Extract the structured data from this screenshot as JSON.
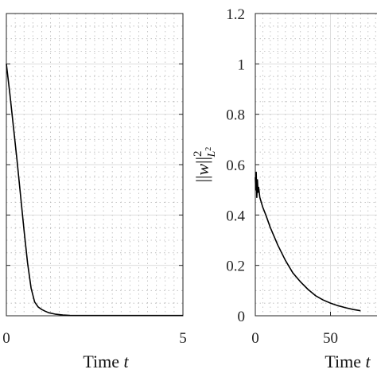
{
  "chart_data": [
    {
      "type": "line",
      "title": "",
      "xlabel": "Time",
      "xlabel_var": "t",
      "ylabel": "",
      "xlim": [
        0,
        5
      ],
      "ylim": [
        0,
        1.2
      ],
      "xticks": [
        0,
        5
      ],
      "xtick_labels": [
        "0",
        "5"
      ],
      "yticks": [
        0,
        0.2,
        0.4,
        0.6,
        0.8,
        1,
        1.2
      ],
      "grid": true,
      "series": [
        {
          "x": [
            0,
            0.1,
            0.2,
            0.3,
            0.4,
            0.5,
            0.6,
            0.7,
            0.8,
            0.9,
            1.0,
            1.1,
            1.2,
            1.4,
            1.6,
            1.8,
            2.0,
            3.0,
            4.0,
            5.0
          ],
          "y": [
            1.0,
            0.88,
            0.75,
            0.62,
            0.48,
            0.34,
            0.21,
            0.11,
            0.055,
            0.035,
            0.025,
            0.018,
            0.012,
            0.006,
            0.003,
            0.0015,
            0.001,
            0.001,
            0.001,
            0.001
          ]
        }
      ]
    },
    {
      "type": "line",
      "title": "",
      "xlabel": "Time",
      "xlabel_var": "t",
      "ylabel": "||w||²_{L²}",
      "xlim": [
        0,
        100
      ],
      "ylim": [
        0,
        1.2
      ],
      "xticks": [
        0,
        50
      ],
      "xtick_labels": [
        "0",
        "50"
      ],
      "yticks": [
        0,
        0.2,
        0.4,
        0.6,
        0.8,
        1,
        1.2
      ],
      "ytick_labels": [
        "0",
        "0.2",
        "0.4",
        "0.6",
        "0.8",
        "1",
        "1.2"
      ],
      "grid": true,
      "series": [
        {
          "x": [
            0,
            0.3,
            0.6,
            1.0,
            1.4,
            1.8,
            2.2,
            3,
            4,
            5,
            7,
            10,
            15,
            20,
            25,
            30,
            35,
            40,
            45,
            50,
            55,
            60,
            65,
            70
          ],
          "y": [
            0.55,
            0.5,
            0.57,
            0.47,
            0.54,
            0.49,
            0.51,
            0.47,
            0.45,
            0.43,
            0.4,
            0.35,
            0.28,
            0.22,
            0.17,
            0.135,
            0.105,
            0.08,
            0.063,
            0.05,
            0.04,
            0.032,
            0.025,
            0.02
          ]
        }
      ]
    }
  ]
}
